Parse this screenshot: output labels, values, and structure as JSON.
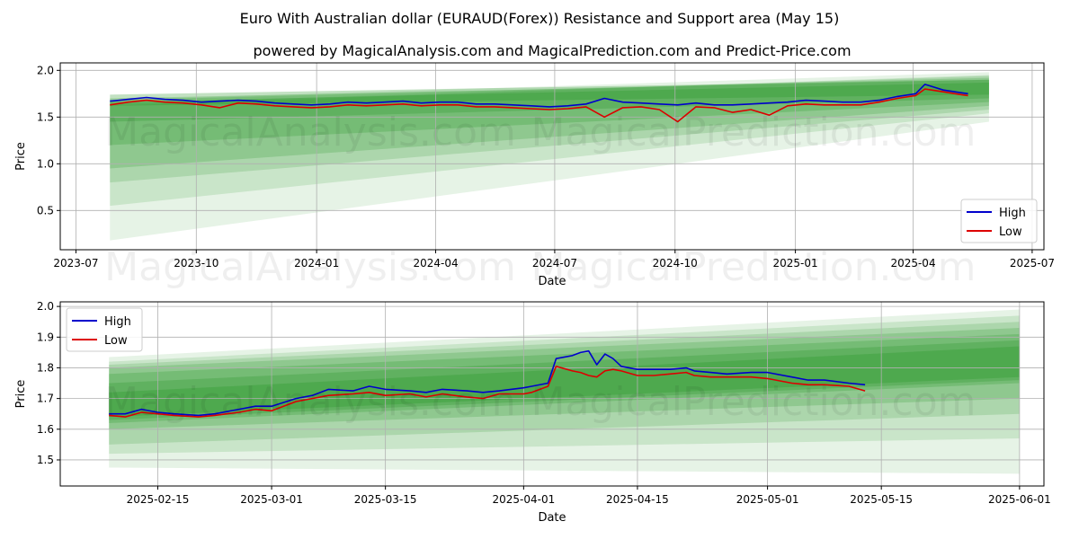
{
  "title": "Euro With Australian dollar (EURAUD(Forex)) Resistance and Support area (May 15)",
  "subtitle": "powered by MagicalAnalysis.com and MagicalPrediction.com and Predict-Price.com",
  "watermarks": [
    "MagicalAnalysis.com",
    "MagicalPrediction.com"
  ],
  "colors": {
    "high": "#0000cc",
    "low": "#dd0000",
    "band": "#2e9a2e"
  },
  "chart_data": [
    {
      "type": "line",
      "xlabel": "Date",
      "ylabel": "Price",
      "x_range": [
        "2023-06-19",
        "2025-07-10"
      ],
      "ylim": [
        0.08,
        2.08
      ],
      "x_ticks": [
        "2023-07",
        "2023-10",
        "2024-01",
        "2024-04",
        "2024-07",
        "2024-10",
        "2025-01",
        "2025-04",
        "2025-07"
      ],
      "y_ticks": [
        0.5,
        1.0,
        1.5,
        2.0
      ],
      "grid": true,
      "legend": "bottom-right",
      "legend_entries": [
        "High",
        "Low"
      ],
      "band_x": [
        "2023-07-27",
        "2025-05-29"
      ],
      "bands": [
        {
          "start": [
            1.62,
            1.66
          ],
          "end": [
            1.74,
            1.87
          ]
        },
        {
          "start": [
            1.45,
            1.74
          ],
          "end": [
            1.7,
            1.9
          ]
        },
        {
          "start": [
            1.2,
            1.7
          ],
          "end": [
            1.66,
            1.9
          ]
        },
        {
          "start": [
            0.95,
            1.68
          ],
          "end": [
            1.62,
            1.92
          ]
        },
        {
          "start": [
            0.8,
            1.64
          ],
          "end": [
            1.58,
            1.94
          ]
        },
        {
          "start": [
            0.55,
            1.62
          ],
          "end": [
            1.54,
            1.95
          ]
        },
        {
          "start": [
            0.18,
            1.68
          ],
          "end": [
            1.45,
            1.98
          ]
        }
      ],
      "series": [
        {
          "name": "High",
          "x": [
            "2023-07-27",
            "2023-08-10",
            "2023-08-24",
            "2023-09-07",
            "2023-09-21",
            "2023-10-05",
            "2023-10-19",
            "2023-11-02",
            "2023-11-16",
            "2023-11-30",
            "2023-12-14",
            "2023-12-28",
            "2024-01-11",
            "2024-01-25",
            "2024-02-08",
            "2024-02-22",
            "2024-03-07",
            "2024-03-21",
            "2024-04-04",
            "2024-04-18",
            "2024-05-02",
            "2024-05-16",
            "2024-05-30",
            "2024-06-13",
            "2024-06-27",
            "2024-07-11",
            "2024-07-25",
            "2024-08-08",
            "2024-08-22",
            "2024-09-05",
            "2024-09-19",
            "2024-10-03",
            "2024-10-17",
            "2024-10-31",
            "2024-11-14",
            "2024-11-28",
            "2024-12-12",
            "2024-12-26",
            "2025-01-09",
            "2025-01-23",
            "2025-02-06",
            "2025-02-20",
            "2025-03-06",
            "2025-03-20",
            "2025-04-03",
            "2025-04-10",
            "2025-04-24",
            "2025-05-08",
            "2025-05-13"
          ],
          "y": [
            1.67,
            1.69,
            1.71,
            1.69,
            1.68,
            1.66,
            1.67,
            1.68,
            1.67,
            1.65,
            1.64,
            1.63,
            1.64,
            1.66,
            1.65,
            1.66,
            1.67,
            1.65,
            1.66,
            1.66,
            1.64,
            1.64,
            1.63,
            1.62,
            1.61,
            1.62,
            1.64,
            1.7,
            1.66,
            1.65,
            1.64,
            1.63,
            1.65,
            1.63,
            1.63,
            1.64,
            1.65,
            1.66,
            1.68,
            1.67,
            1.66,
            1.66,
            1.68,
            1.72,
            1.75,
            1.85,
            1.79,
            1.76,
            1.75
          ]
        },
        {
          "name": "Low",
          "x": [
            "2023-07-27",
            "2023-08-10",
            "2023-08-24",
            "2023-09-07",
            "2023-09-21",
            "2023-10-05",
            "2023-10-19",
            "2023-11-02",
            "2023-11-16",
            "2023-11-30",
            "2023-12-14",
            "2023-12-28",
            "2024-01-11",
            "2024-01-25",
            "2024-02-08",
            "2024-02-22",
            "2024-03-07",
            "2024-03-21",
            "2024-04-04",
            "2024-04-18",
            "2024-05-02",
            "2024-05-16",
            "2024-05-30",
            "2024-06-13",
            "2024-06-27",
            "2024-07-11",
            "2024-07-25",
            "2024-08-08",
            "2024-08-22",
            "2024-09-05",
            "2024-09-19",
            "2024-10-03",
            "2024-10-17",
            "2024-10-31",
            "2024-11-14",
            "2024-11-28",
            "2024-12-12",
            "2024-12-26",
            "2025-01-09",
            "2025-01-23",
            "2025-02-06",
            "2025-02-20",
            "2025-03-06",
            "2025-03-20",
            "2025-04-03",
            "2025-04-10",
            "2025-04-24",
            "2025-05-08",
            "2025-05-13"
          ],
          "y": [
            1.63,
            1.66,
            1.68,
            1.66,
            1.65,
            1.63,
            1.6,
            1.65,
            1.64,
            1.62,
            1.61,
            1.6,
            1.61,
            1.63,
            1.62,
            1.63,
            1.64,
            1.62,
            1.63,
            1.63,
            1.61,
            1.61,
            1.6,
            1.59,
            1.58,
            1.59,
            1.61,
            1.5,
            1.6,
            1.61,
            1.58,
            1.45,
            1.61,
            1.6,
            1.55,
            1.58,
            1.52,
            1.62,
            1.64,
            1.63,
            1.63,
            1.63,
            1.66,
            1.7,
            1.73,
            1.8,
            1.77,
            1.74,
            1.73
          ]
        }
      ]
    },
    {
      "type": "line",
      "xlabel": "Date",
      "ylabel": "Price",
      "x_range": [
        "2025-02-03",
        "2025-06-04"
      ],
      "ylim": [
        1.415,
        2.015
      ],
      "x_ticks": [
        "2025-02-15",
        "2025-03-01",
        "2025-03-15",
        "2025-04-01",
        "2025-04-15",
        "2025-05-01",
        "2025-05-15",
        "2025-06-01"
      ],
      "y_ticks": [
        1.5,
        1.6,
        1.7,
        1.8,
        1.9,
        2.0
      ],
      "grid": true,
      "legend": "top-left",
      "legend_entries": [
        "High",
        "Low"
      ],
      "band_x": [
        "2025-02-09",
        "2025-06-01"
      ],
      "bands": [
        {
          "start": [
            1.64,
            1.72
          ],
          "end": [
            1.77,
            1.87
          ]
        },
        {
          "start": [
            1.63,
            1.75
          ],
          "end": [
            1.76,
            1.89
          ]
        },
        {
          "start": [
            1.62,
            1.78
          ],
          "end": [
            1.75,
            1.91
          ]
        },
        {
          "start": [
            1.6,
            1.8
          ],
          "end": [
            1.7,
            1.93
          ]
        },
        {
          "start": [
            1.55,
            1.81
          ],
          "end": [
            1.65,
            1.95
          ]
        },
        {
          "start": [
            1.52,
            1.82
          ],
          "end": [
            1.57,
            1.97
          ]
        },
        {
          "start": [
            1.475,
            1.835
          ],
          "end": [
            1.455,
            1.99
          ]
        }
      ],
      "series": [
        {
          "name": "High",
          "x": [
            "2025-02-09",
            "2025-02-11",
            "2025-02-13",
            "2025-02-15",
            "2025-02-17",
            "2025-02-20",
            "2025-02-22",
            "2025-02-25",
            "2025-02-27",
            "2025-03-01",
            "2025-03-04",
            "2025-03-06",
            "2025-03-08",
            "2025-03-11",
            "2025-03-13",
            "2025-03-15",
            "2025-03-18",
            "2025-03-20",
            "2025-03-22",
            "2025-03-25",
            "2025-03-27",
            "2025-03-29",
            "2025-04-01",
            "2025-04-02",
            "2025-04-04",
            "2025-04-05",
            "2025-04-07",
            "2025-04-08",
            "2025-04-09",
            "2025-04-10",
            "2025-04-11",
            "2025-04-12",
            "2025-04-13",
            "2025-04-15",
            "2025-04-17",
            "2025-04-19",
            "2025-04-21",
            "2025-04-22",
            "2025-04-24",
            "2025-04-26",
            "2025-04-29",
            "2025-05-01",
            "2025-05-04",
            "2025-05-06",
            "2025-05-08",
            "2025-05-11",
            "2025-05-13"
          ],
          "y": [
            1.65,
            1.65,
            1.665,
            1.655,
            1.65,
            1.645,
            1.65,
            1.665,
            1.675,
            1.675,
            1.7,
            1.71,
            1.73,
            1.725,
            1.74,
            1.73,
            1.725,
            1.72,
            1.73,
            1.725,
            1.72,
            1.725,
            1.735,
            1.74,
            1.75,
            1.83,
            1.84,
            1.85,
            1.855,
            1.81,
            1.845,
            1.83,
            1.805,
            1.795,
            1.795,
            1.795,
            1.8,
            1.79,
            1.785,
            1.78,
            1.785,
            1.785,
            1.77,
            1.76,
            1.76,
            1.75,
            1.745
          ]
        },
        {
          "name": "Low",
          "x": [
            "2025-02-09",
            "2025-02-11",
            "2025-02-13",
            "2025-02-15",
            "2025-02-17",
            "2025-02-20",
            "2025-02-22",
            "2025-02-25",
            "2025-02-27",
            "2025-03-01",
            "2025-03-04",
            "2025-03-06",
            "2025-03-08",
            "2025-03-11",
            "2025-03-13",
            "2025-03-15",
            "2025-03-18",
            "2025-03-20",
            "2025-03-22",
            "2025-03-25",
            "2025-03-27",
            "2025-03-29",
            "2025-04-01",
            "2025-04-02",
            "2025-04-04",
            "2025-04-05",
            "2025-04-07",
            "2025-04-08",
            "2025-04-09",
            "2025-04-10",
            "2025-04-11",
            "2025-04-12",
            "2025-04-13",
            "2025-04-15",
            "2025-04-17",
            "2025-04-19",
            "2025-04-21",
            "2025-04-22",
            "2025-04-24",
            "2025-04-26",
            "2025-04-29",
            "2025-05-01",
            "2025-05-04",
            "2025-05-06",
            "2025-05-08",
            "2025-05-11",
            "2025-05-13"
          ],
          "y": [
            1.645,
            1.64,
            1.655,
            1.65,
            1.645,
            1.64,
            1.645,
            1.655,
            1.665,
            1.66,
            1.69,
            1.7,
            1.71,
            1.715,
            1.72,
            1.71,
            1.715,
            1.705,
            1.715,
            1.705,
            1.7,
            1.715,
            1.715,
            1.72,
            1.74,
            1.805,
            1.79,
            1.785,
            1.775,
            1.77,
            1.79,
            1.795,
            1.79,
            1.775,
            1.775,
            1.78,
            1.785,
            1.775,
            1.77,
            1.77,
            1.77,
            1.765,
            1.75,
            1.745,
            1.745,
            1.74,
            1.725
          ]
        }
      ]
    }
  ]
}
